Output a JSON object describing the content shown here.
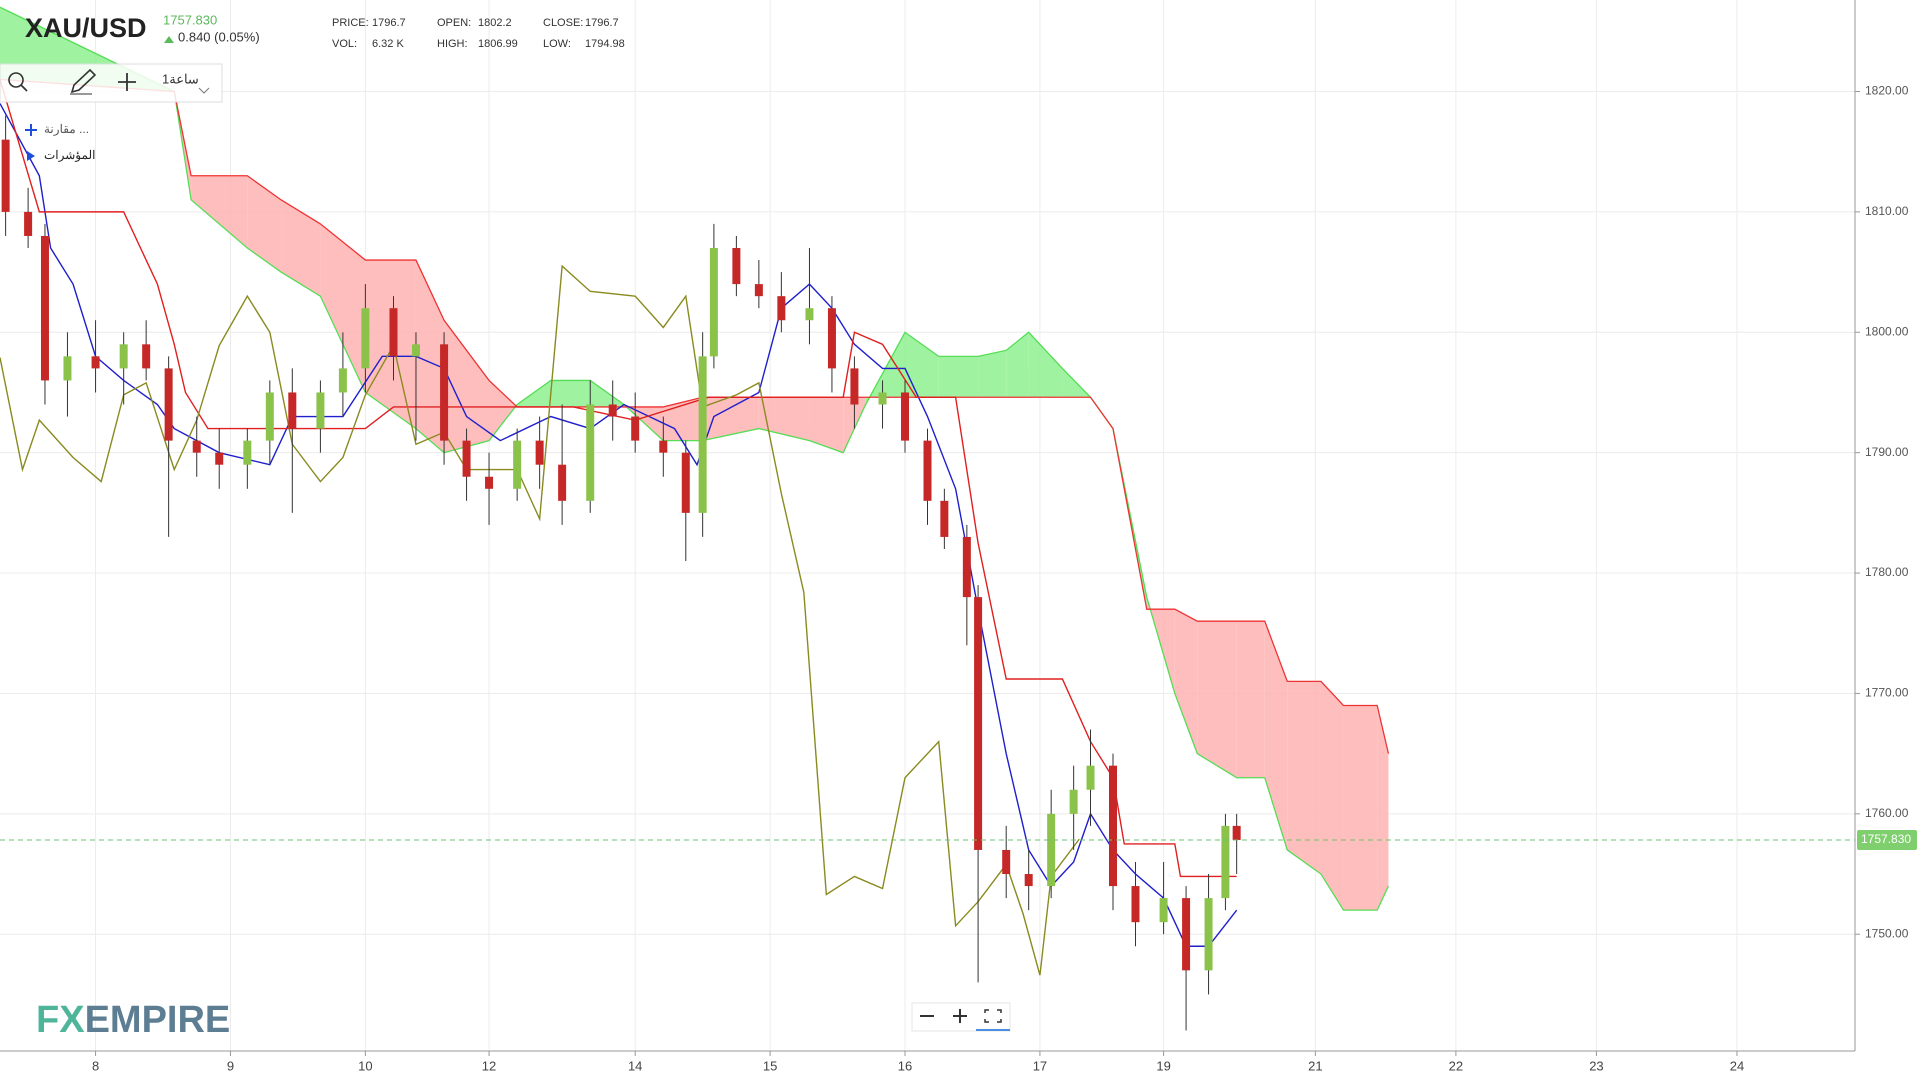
{
  "header": {
    "stats": [
      {
        "label": "PRICE:",
        "value": "1796.7"
      },
      {
        "label": "OPEN:",
        "value": "1802.2"
      },
      {
        "label": "CLOSE:",
        "value": "1796.7"
      },
      {
        "label": "VOL:",
        "value": "6.32 K"
      },
      {
        "label": "HIGH:",
        "value": "1806.99"
      },
      {
        "label": "LOW:",
        "value": "1794.98"
      }
    ],
    "change": "0.840 (0.05%)"
  },
  "toolbar": {
    "interval": "1ساعة",
    "compare": "مقارنة ...",
    "indicators": "المؤشرات"
  },
  "branding": {
    "logo_fx": "FX",
    "logo_rest": "EMPIRE"
  },
  "chart_data": {
    "type": "candlestick",
    "title": "XAU/USD",
    "last_price": {
      "value": 1757.83,
      "label": "1757.830"
    },
    "up_color": "#8bc34a",
    "down_color": "#c62828",
    "x": [
      -16,
      -12,
      -9,
      -5,
      0,
      5,
      9,
      13,
      18,
      22,
      27,
      31,
      35,
      40,
      44,
      48,
      53,
      57,
      62,
      66,
      70,
      75,
      79,
      83,
      88,
      92,
      96,
      101,
      105,
      108,
      110,
      114,
      118,
      122,
      127,
      131,
      135,
      140,
      144,
      148,
      151,
      155,
      157,
      162,
      166,
      170,
      174,
      177,
      181,
      185,
      190,
      194,
      198,
      201,
      203
    ],
    "open": [
      1816,
      1810,
      1808,
      1796,
      1798,
      1797,
      1799,
      1797,
      1791,
      1790,
      1789,
      1791,
      1795,
      1792,
      1795,
      1797,
      1802,
      1798,
      1799,
      1791,
      1788,
      1787,
      1791,
      1789,
      1786,
      1794,
      1793,
      1791,
      1790,
      1785,
      1798,
      1807,
      1804,
      1803,
      1801,
      1802,
      1797,
      1794,
      1795,
      1791,
      1786,
      1783,
      1778,
      1757,
      1755,
      1754,
      1760,
      1762,
      1764,
      1754,
      1751,
      1753,
      1747,
      1753,
      1759
    ],
    "high": [
      1818,
      1812,
      1809,
      1800,
      1801,
      1800,
      1801,
      1798,
      1793,
      1792,
      1792,
      1796,
      1797,
      1796,
      1800,
      1804,
      1803,
      1800,
      1800,
      1792,
      1790,
      1792,
      1793,
      1794,
      1796,
      1796,
      1795,
      1793,
      1791,
      1800,
      1809,
      1808,
      1806,
      1805,
      1807,
      1803,
      1798,
      1796,
      1796,
      1792,
      1787,
      1784,
      1779,
      1759,
      1757,
      1762,
      1764,
      1767,
      1765,
      1756,
      1756,
      1754,
      1755,
      1760,
      1760
    ],
    "low": [
      1808,
      1807,
      1794,
      1793,
      1795,
      1794,
      1796,
      1783,
      1788,
      1787,
      1787,
      1789,
      1785,
      1790,
      1793,
      1795,
      1796,
      1791,
      1789,
      1786,
      1784,
      1786,
      1787,
      1784,
      1785,
      1791,
      1790,
      1788,
      1781,
      1783,
      1797,
      1803,
      1802,
      1800,
      1799,
      1795,
      1792,
      1792,
      1790,
      1784,
      1782,
      1774,
      1746,
      1753,
      1752,
      1753,
      1757,
      1759,
      1752,
      1749,
      1750,
      1742,
      1745,
      1752,
      1755
    ],
    "close": [
      1810,
      1808,
      1796,
      1798,
      1797,
      1799,
      1797,
      1791,
      1790,
      1789,
      1791,
      1795,
      1792,
      1795,
      1797,
      1802,
      1798,
      1799,
      1791,
      1788,
      1787,
      1791,
      1789,
      1786,
      1794,
      1793,
      1791,
      1790,
      1785,
      1798,
      1807,
      1804,
      1803,
      1801,
      1802,
      1797,
      1794,
      1795,
      1791,
      1786,
      1783,
      1778,
      1757,
      1755,
      1754,
      1760,
      1762,
      1764,
      1754,
      1751,
      1753,
      1747,
      1753,
      1759,
      1757.83
    ],
    "cloud": {
      "up_color": "#8ef08e",
      "down_color": "#ffb3b3",
      "a_color": "#55dd55",
      "b_color": "#ee3333",
      "x": [
        -17,
        14,
        17,
        27,
        33,
        40,
        48,
        57,
        62,
        70,
        75,
        81,
        88,
        94,
        101,
        108,
        118,
        127,
        133,
        137,
        144,
        150,
        157,
        162,
        166,
        172,
        177,
        181,
        187,
        192,
        196,
        203,
        208,
        212,
        218,
        222,
        228,
        230
      ],
      "span_a": [
        1827,
        1820,
        1811,
        1807,
        1805,
        1803,
        1795,
        1792,
        1790,
        1791,
        1794,
        1796,
        1796,
        1794,
        1791,
        1791,
        1792,
        1791,
        1790,
        1794,
        1800,
        1798,
        1798,
        1798.5,
        1800,
        1797,
        1794.6,
        1792,
        1778,
        1770,
        1765,
        1763,
        1763,
        1757,
        1755,
        1752,
        1752,
        1754
      ],
      "span_b": [
        1821,
        1820,
        1813,
        1813,
        1811,
        1809,
        1806,
        1806,
        1801,
        1796,
        1793.8,
        1793.8,
        1793.8,
        1793.8,
        1793.8,
        1794.6,
        1794.6,
        1794.6,
        1794.6,
        1794.6,
        1794.6,
        1794.6,
        1794.6,
        1794.6,
        1794.6,
        1794.6,
        1794.6,
        1792,
        1777,
        1777,
        1776,
        1776,
        1776,
        1771,
        1771,
        1769,
        1769,
        1765
      ]
    },
    "lines": [
      {
        "color": "#1f1fcc",
        "x": [
          -17,
          -10,
          -8,
          -4,
          0,
          5,
          11,
          14,
          22,
          31,
          35,
          44,
          51,
          57,
          62,
          66,
          72,
          81,
          88,
          94,
          103,
          107,
          110,
          118,
          122,
          127,
          131,
          135,
          140,
          144,
          148,
          153,
          157,
          162,
          166,
          170,
          174,
          177,
          181,
          185,
          190,
          194,
          198,
          203
        ],
        "values": [
          1819,
          1813,
          1807,
          1804,
          1798,
          1796,
          1794,
          1792,
          1790,
          1789,
          1793,
          1793,
          1798,
          1798,
          1797,
          1793,
          1791,
          1793,
          1792,
          1794,
          1792,
          1789,
          1793,
          1795,
          1802,
          1804,
          1802,
          1799,
          1797,
          1797,
          1793,
          1787,
          1777,
          1765,
          1757,
          1754,
          1756,
          1760,
          1757,
          1755,
          1753,
          1749,
          1749,
          1752
        ]
      },
      {
        "color": "#e02020",
        "x": [
          -17,
          -10,
          5,
          11,
          14,
          16,
          20,
          48,
          53,
          70,
          85,
          96,
          109,
          133,
          135,
          140,
          146,
          153,
          157,
          162,
          172,
          177,
          181,
          183,
          192,
          193,
          203
        ],
        "values": [
          1821,
          1810,
          1810,
          1804,
          1799,
          1795,
          1792,
          1792,
          1793.8,
          1793.8,
          1793.8,
          1792.7,
          1794.6,
          1794.6,
          1800,
          1799,
          1794.6,
          1794.6,
          1782.5,
          1771.2,
          1771.2,
          1766,
          1763,
          1757.5,
          1757.5,
          1754.8,
          1754.8
        ]
      },
      {
        "color": "#8a8a20",
        "x": [
          -17,
          -13,
          -10,
          -4,
          1,
          5,
          9,
          14,
          18,
          22,
          27,
          31,
          35,
          40,
          44,
          48,
          53,
          57,
          62,
          66,
          75,
          79,
          83,
          88,
          96,
          101,
          105,
          108,
          114,
          118,
          122,
          126,
          130,
          135,
          140,
          144,
          150,
          153,
          157,
          162,
          165,
          168,
          170,
          175
        ],
        "values": [
          1797.9,
          1788.6,
          1792.7,
          1789.6,
          1787.6,
          1794.8,
          1795.8,
          1788.6,
          1792.7,
          1798.9,
          1803,
          1800,
          1790.7,
          1787.6,
          1789.6,
          1794.8,
          1798.9,
          1790.7,
          1791.7,
          1788.6,
          1788.6,
          1784.5,
          1805.5,
          1803.4,
          1803,
          1800.4,
          1803,
          1793.8,
          1794.8,
          1795.8,
          1786.6,
          1778.4,
          1753.3,
          1754.8,
          1753.8,
          1763,
          1766,
          1750.7,
          1752.7,
          1755.8,
          1751.7,
          1746.6,
          1754.8,
          1757.9
        ]
      }
    ],
    "xlim": [
      -17,
      313
    ],
    "ylim": [
      1740.3,
      1827.6
    ],
    "xticks": [
      {
        "value": 0,
        "label": "8"
      },
      {
        "value": 24,
        "label": "9"
      },
      {
        "value": 48,
        "label": "10"
      },
      {
        "value": 70,
        "label": "12"
      },
      {
        "value": 96,
        "label": "14"
      },
      {
        "value": 120,
        "label": "15"
      },
      {
        "value": 144,
        "label": "16"
      },
      {
        "value": 168,
        "label": "17"
      },
      {
        "value": 190,
        "label": "19"
      },
      {
        "value": 217,
        "label": "21"
      },
      {
        "value": 242,
        "label": "22"
      },
      {
        "value": 267,
        "label": "23"
      },
      {
        "value": 292,
        "label": "24"
      }
    ],
    "yticks": [
      {
        "value": 1750,
        "label": "1750.00"
      },
      {
        "value": 1760,
        "label": "1760.00"
      },
      {
        "value": 1770,
        "label": "1770.00"
      },
      {
        "value": 1780,
        "label": "1780.00"
      },
      {
        "value": 1790,
        "label": "1790.00"
      },
      {
        "value": 1800,
        "label": "1800.00"
      },
      {
        "value": 1810,
        "label": "1810.00"
      },
      {
        "value": 1820,
        "label": "1820.00"
      }
    ],
    "grid": true
  }
}
